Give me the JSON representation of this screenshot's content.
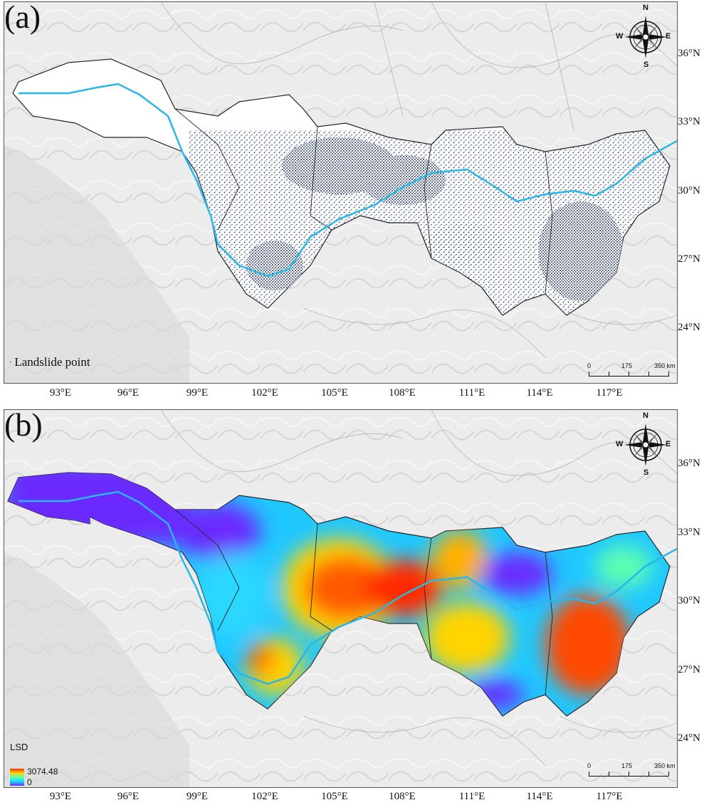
{
  "panels": [
    {
      "label": "(a)",
      "legend_text": "Landslide point",
      "compass": {
        "n": "N",
        "s": "S",
        "e": "E",
        "w": "W"
      },
      "scale": {
        "start": "0",
        "mid": "175",
        "end": "350 km"
      },
      "lat_ticks": [
        "36°N",
        "33°N",
        "30°N",
        "27°N",
        "24°N"
      ],
      "lon_ticks": [
        "93°E",
        "96°E",
        "99°E",
        "102°E",
        "105°E",
        "108°E",
        "111°E",
        "114°E",
        "117°E"
      ]
    },
    {
      "label": "(b)",
      "legend_title": "LSD",
      "legend_max": "3074.48",
      "legend_min": "0",
      "compass": {
        "n": "N",
        "s": "S",
        "e": "E",
        "w": "W"
      },
      "scale": {
        "start": "0",
        "mid": "175",
        "end": "350 km"
      },
      "lat_ticks": [
        "36°N",
        "33°N",
        "30°N",
        "27°N",
        "24°N"
      ],
      "lon_ticks": [
        "93°E",
        "96°E",
        "99°E",
        "102°E",
        "105°E",
        "108°E",
        "111°E",
        "114°E",
        "117°E"
      ]
    }
  ],
  "colors": {
    "basin_outline": "#222222",
    "river": "#29b6e8",
    "landslide_points": "#2a3d6e",
    "lsd_high": "#ff2a00",
    "lsd_low": "#6a2cff"
  }
}
